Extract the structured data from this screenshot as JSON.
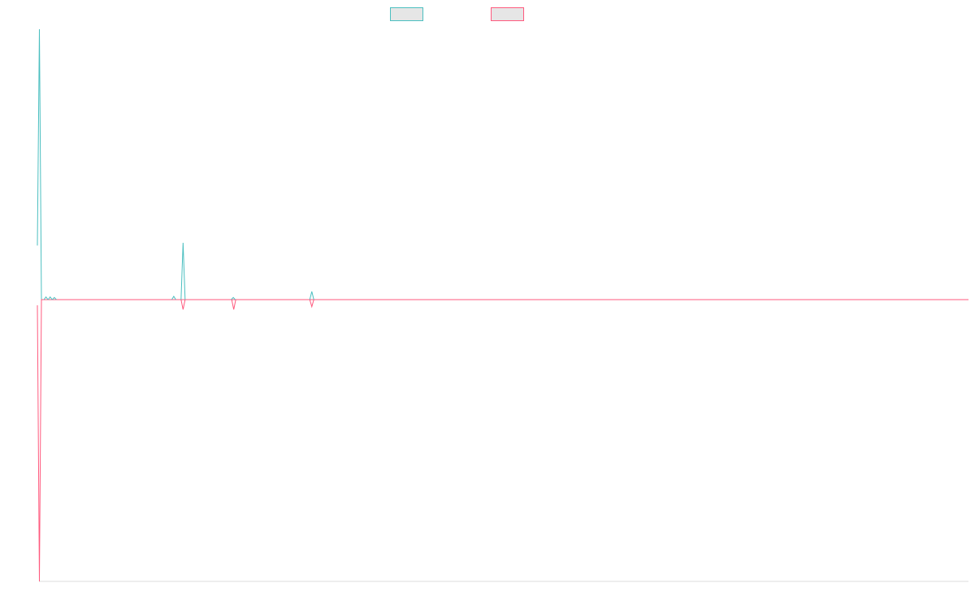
{
  "colors": {
    "series_a": "#4bbfc0",
    "series_b": "#ff5a7e",
    "legend_fill": "#e6e6e6",
    "axis": "#dddddd"
  },
  "chart_data": {
    "type": "line",
    "title": "",
    "xlabel": "",
    "ylabel": "",
    "grid": false,
    "legend": {
      "placement": "top-center",
      "show_labels": false
    },
    "x": [
      0,
      1,
      2,
      3,
      4,
      5,
      6,
      7,
      8,
      9,
      10,
      11,
      12,
      13,
      14,
      15,
      16,
      17,
      18,
      19,
      20,
      21,
      22,
      23,
      24,
      25,
      26,
      27,
      28,
      29,
      30,
      31,
      32,
      33,
      34,
      35,
      36,
      37,
      38,
      39,
      40,
      41,
      42,
      43,
      44,
      45,
      46,
      47,
      48,
      49,
      50,
      51,
      52,
      53,
      54,
      55,
      56,
      57,
      58,
      59,
      60,
      61,
      62,
      63,
      64,
      65,
      66,
      67,
      68,
      69,
      70,
      71,
      72,
      73,
      74,
      75,
      76,
      77,
      78,
      79,
      80,
      81,
      82,
      83,
      84,
      85,
      86,
      87,
      88,
      89,
      90,
      91,
      92,
      93,
      94,
      95,
      96,
      97,
      98,
      99,
      100,
      101,
      102,
      103,
      104,
      105,
      106,
      107,
      108,
      109,
      110,
      111,
      112,
      113,
      114,
      115,
      116,
      117,
      118,
      119,
      120,
      121,
      122,
      123,
      124,
      125,
      126,
      127,
      128,
      129,
      130,
      131,
      132,
      133,
      134,
      135,
      136,
      137,
      138,
      139,
      140,
      141,
      142,
      143,
      144,
      145,
      146,
      147,
      148,
      149,
      150,
      151,
      152,
      153,
      154,
      155,
      156,
      157,
      158,
      159,
      160,
      161,
      162,
      163,
      164,
      165,
      166,
      167,
      168,
      169,
      170,
      171,
      172,
      173,
      174,
      175,
      176,
      177,
      178,
      179,
      180,
      181,
      182,
      183,
      184,
      185,
      186,
      187,
      188,
      189,
      190,
      191,
      192,
      193,
      194,
      195,
      196,
      197,
      198,
      199,
      200
    ],
    "ylim": [
      -1,
      1
    ],
    "series": [
      {
        "values": [
          0.2,
          1.0,
          0.0,
          0.0,
          0.0,
          0.0,
          0.0,
          0.0,
          0.0,
          0.0,
          0.0,
          0.0,
          0.0,
          0.0,
          0.0,
          0.0,
          0.0,
          0.0,
          0.0,
          0.0,
          0.0,
          0.0,
          0.0,
          0.0,
          0.0,
          0.0,
          0.0,
          0.0,
          0.0,
          0.0,
          0.0,
          0.0,
          0.0,
          0.0,
          0.0,
          0.0,
          0.0,
          0.0,
          0.0,
          0.0,
          0.0,
          0.0,
          0.0,
          0.0,
          0.0,
          0.0,
          0.0,
          0.0,
          0.0,
          0.0,
          0.0,
          0.0,
          0.0,
          0.0,
          0.0,
          0.0,
          0.0,
          0.0,
          0.0,
          0.0,
          0.0,
          0.0,
          0.0,
          0.0,
          0.0,
          0.0,
          0.0,
          0.0,
          0.0,
          0.0,
          0.0,
          0.0,
          0.0,
          0.0,
          0.0,
          0.0,
          0.0,
          0.0,
          0.0,
          0.0,
          0.0,
          0.0,
          0.0,
          0.0,
          0.0,
          0.0,
          0.0,
          0.0,
          0.0,
          0.0,
          0.0,
          0.0,
          0.0,
          0.0,
          0.0,
          0.0,
          0.0,
          0.0,
          0.0,
          0.0,
          0.0,
          0.0,
          0.0,
          0.0,
          0.0,
          0.0,
          0.0,
          0.0,
          0.0,
          0.0,
          0.0,
          0.0,
          0.0,
          0.0,
          0.0,
          0.0,
          0.0,
          0.0,
          0.0,
          0.0,
          0.0,
          0.0,
          0.0,
          0.0,
          0.0,
          0.0,
          0.0,
          0.0,
          0.0,
          0.0,
          0.0,
          0.0,
          0.0,
          0.0,
          0.0,
          0.0,
          0.0,
          0.0,
          0.0,
          0.0,
          0.0,
          0.0,
          0.0,
          0.0,
          0.0,
          0.0,
          0.0,
          0.0,
          0.0,
          0.0,
          0.0,
          0.0,
          0.0,
          0.0,
          0.0,
          0.0,
          0.0,
          0.0,
          0.0,
          0.0,
          0.0,
          0.0,
          0.0,
          0.0,
          0.0,
          0.0,
          0.0,
          0.0,
          0.0,
          0.0,
          0.0,
          0.0,
          0.0,
          0.0,
          0.0,
          0.0,
          0.0,
          0.0,
          0.0,
          0.0,
          0.0,
          0.0,
          0.0,
          0.0,
          0.0,
          0.0,
          0.0,
          0.0,
          0.0,
          0.0,
          0.0,
          0.0,
          0.0,
          0.0,
          0.0,
          0.0,
          0.0,
          0.0,
          0.0,
          0.0,
          0.0
        ]
      },
      {
        "values": [
          -0.02,
          -1.0,
          0.0,
          0.0,
          0.0,
          0.0,
          0.0,
          0.0,
          0.0,
          0.0,
          0.0,
          0.0,
          0.0,
          0.0,
          0.0,
          0.0,
          0.0,
          0.0,
          0.0,
          0.0,
          0.0,
          0.0,
          0.0,
          0.0,
          0.0,
          0.0,
          0.0,
          0.0,
          0.0,
          0.0,
          0.0,
          0.0,
          0.0,
          0.0,
          0.0,
          0.0,
          0.0,
          0.0,
          0.0,
          0.0,
          0.0,
          0.0,
          0.0,
          0.0,
          0.0,
          0.0,
          0.0,
          0.0,
          0.0,
          0.0,
          0.0,
          0.0,
          0.0,
          0.0,
          0.0,
          0.0,
          0.0,
          0.0,
          0.0,
          0.0,
          0.0,
          0.0,
          0.0,
          0.0,
          0.0,
          0.0,
          0.0,
          0.0,
          0.0,
          0.0,
          0.0,
          0.0,
          0.0,
          0.0,
          0.0,
          0.0,
          0.0,
          0.0,
          0.0,
          0.0,
          0.0,
          0.0,
          0.0,
          0.0,
          0.0,
          0.0,
          0.0,
          0.0,
          0.0,
          0.0,
          0.0,
          0.0,
          0.0,
          0.0,
          0.0,
          0.0,
          0.0,
          0.0,
          0.0,
          0.0,
          0.0,
          0.0,
          0.0,
          0.0,
          0.0,
          0.0,
          0.0,
          0.0,
          0.0,
          0.0,
          0.0,
          0.0,
          0.0,
          0.0,
          0.0,
          0.0,
          0.0,
          0.0,
          0.0,
          0.0,
          0.0,
          0.0,
          0.0,
          0.0,
          0.0,
          0.0,
          0.0,
          0.0,
          0.0,
          0.0,
          0.0,
          0.0,
          0.0,
          0.0,
          0.0,
          0.0,
          0.0,
          0.0,
          0.0,
          0.0,
          0.0,
          0.0,
          0.0,
          0.0,
          0.0,
          0.0,
          0.0,
          0.0,
          0.0,
          0.0,
          0.0,
          0.0,
          0.0,
          0.0,
          0.0,
          0.0,
          0.0,
          0.0,
          0.0,
          0.0,
          0.0,
          0.0,
          0.0,
          0.0,
          0.0,
          0.0,
          0.0,
          0.0,
          0.0,
          0.0,
          0.0,
          0.0,
          0.0,
          0.0,
          0.0,
          0.0,
          0.0,
          0.0,
          0.0,
          0.0,
          0.0,
          0.0,
          0.0,
          0.0,
          0.0,
          0.0,
          0.0,
          0.0,
          0.0,
          0.0,
          0.0,
          0.0,
          0.0,
          0.0,
          0.0,
          0.0,
          0.0,
          0.0,
          0.0,
          0.0,
          0.0
        ]
      }
    ],
    "blips": [
      {
        "series": 0,
        "x": 1.5,
        "y": 0.01
      },
      {
        "series": 0,
        "x": 2.4,
        "y": 0.01
      },
      {
        "series": 0,
        "x": 3.3,
        "y": 0.008
      },
      {
        "series": 0,
        "x": 29.0,
        "y": 0.012
      },
      {
        "series": 0,
        "x": 31.0,
        "y": 0.21
      },
      {
        "series": 1,
        "x": 31.0,
        "y": -0.035
      },
      {
        "series": 0,
        "x": 41.8,
        "y": 0.008
      },
      {
        "series": 1,
        "x": 41.9,
        "y": -0.035
      },
      {
        "series": 0,
        "x": 58.7,
        "y": 0.03
      },
      {
        "series": 1,
        "x": 58.7,
        "y": -0.025
      }
    ]
  }
}
